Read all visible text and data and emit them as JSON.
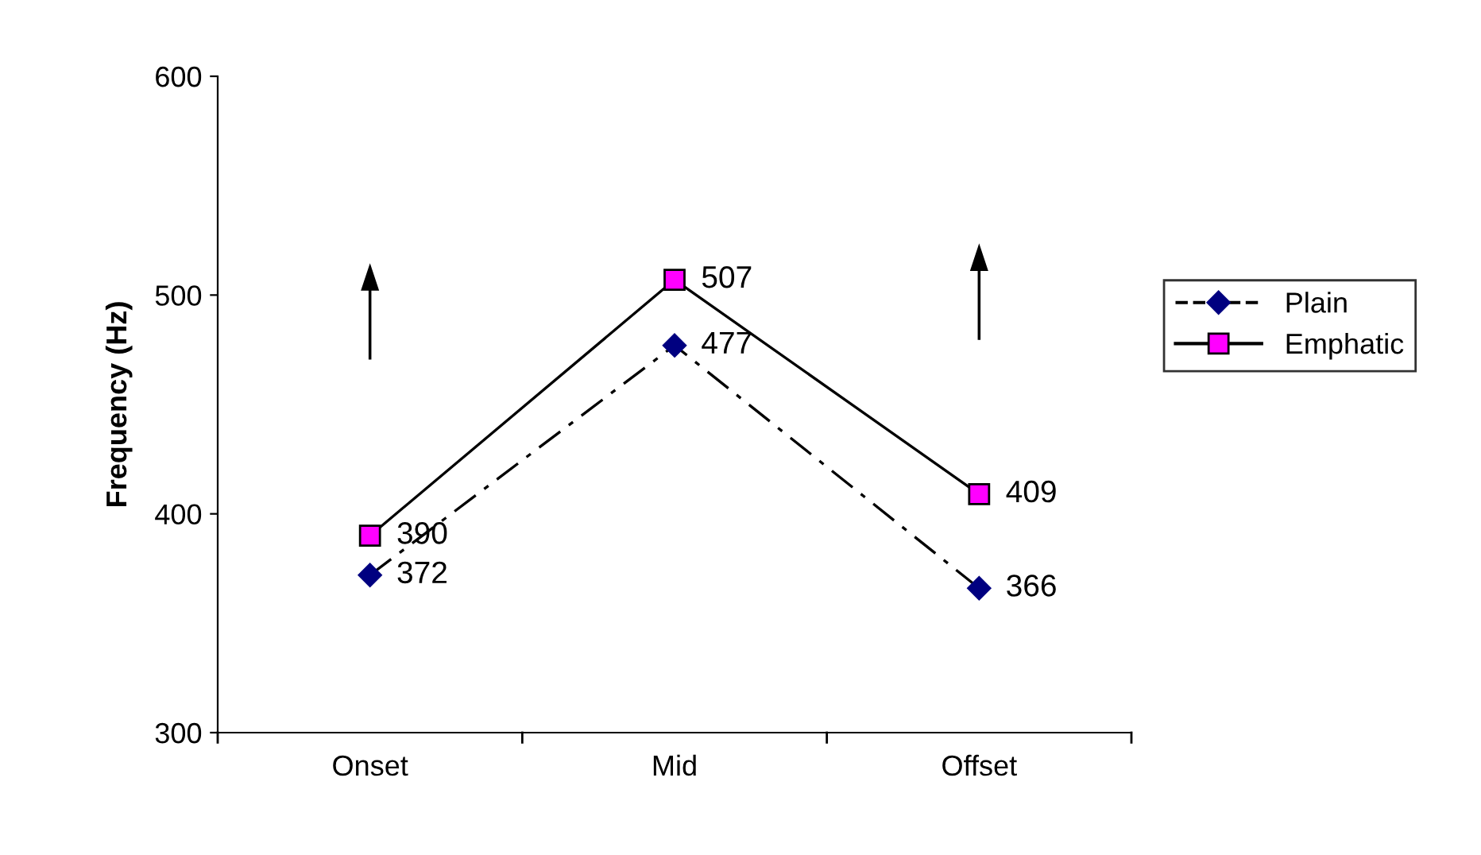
{
  "chart_data": {
    "type": "line",
    "ylabel": "Frequency (Hz)",
    "categories": [
      "Onset",
      "Mid",
      "Offset"
    ],
    "series": [
      {
        "name": "Plain",
        "color": "#000080",
        "values": [
          372,
          477,
          366
        ],
        "marker": "diamond",
        "line_style": "dashdot"
      },
      {
        "name": "Emphatic",
        "color": "#ff00ff",
        "values": [
          390,
          507,
          409
        ],
        "marker": "square",
        "line_style": "solid"
      }
    ],
    "ylim": [
      300,
      600
    ],
    "yticks": [
      300,
      400,
      500,
      600
    ],
    "grid": false,
    "legend": "right",
    "data_labels": true
  }
}
